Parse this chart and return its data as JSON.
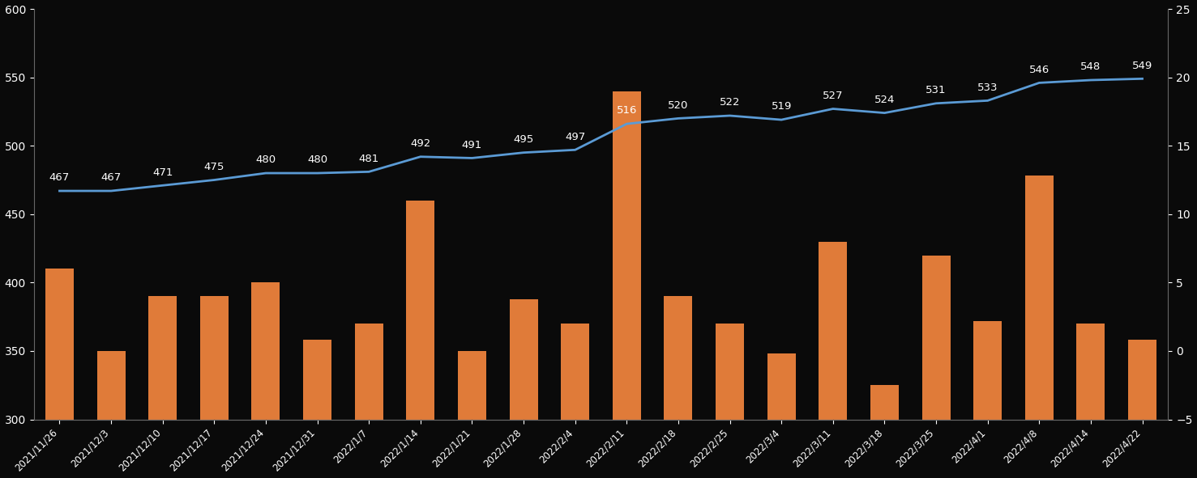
{
  "dates": [
    "2021/11/26",
    "2021/12/3",
    "2021/12/10",
    "2021/12/17",
    "2021/12/24",
    "2021/12/31",
    "2022/1/7",
    "2022/1/14",
    "2022/1/21",
    "2022/1/28",
    "2022/2/4",
    "2022/2/11",
    "2022/2/18",
    "2022/2/25",
    "2022/3/4",
    "2022/3/11",
    "2022/3/18",
    "2022/3/25",
    "2022/4/1",
    "2022/4/8",
    "2022/4/14",
    "2022/4/22"
  ],
  "line_values": [
    467,
    467,
    471,
    475,
    480,
    480,
    481,
    492,
    491,
    495,
    497,
    516,
    520,
    522,
    519,
    527,
    524,
    531,
    533,
    546,
    548,
    549
  ],
  "bar_values_left": [
    410,
    350,
    390,
    390,
    400,
    358,
    370,
    460,
    350,
    388,
    370,
    540,
    390,
    370,
    348,
    430,
    325,
    420,
    372,
    478,
    370,
    358
  ],
  "line_color": "#5b9bd5",
  "bar_color": "#e07b39",
  "bg_color": "#0a0a0a",
  "text_color": "#ffffff",
  "left_ylim": [
    300,
    600
  ],
  "right_ylim": [
    -5,
    25
  ],
  "left_yticks": [
    300,
    350,
    400,
    450,
    500,
    550,
    600
  ],
  "right_yticks": [
    -5,
    0,
    5,
    10,
    15,
    20,
    25
  ],
  "value_label_fontsize": 9.5,
  "tick_fontsize": 10,
  "xtick_fontsize": 8.5
}
